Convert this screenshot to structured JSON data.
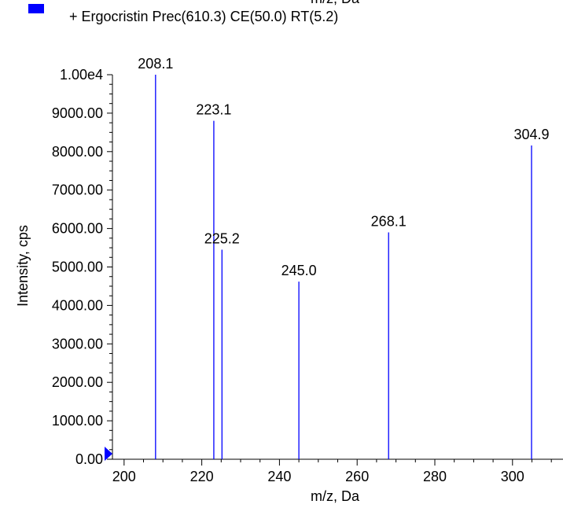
{
  "header": {
    "cut_off_axis_label": "m/z, Da"
  },
  "legend": {
    "label": "+ Ergocristin Prec(610.3) CE(50.0) RT(5.2)",
    "swatch_color": "#0000ff"
  },
  "chart_data": {
    "type": "bar",
    "xlabel": "m/z, Da",
    "ylabel": "Intensity, cps",
    "xlim": [
      197,
      313
    ],
    "ylim": [
      0,
      10000
    ],
    "x_ticks": [
      200,
      220,
      240,
      260,
      280,
      300
    ],
    "x_tick_labels": [
      "200",
      "220",
      "240",
      "260",
      "280",
      "300"
    ],
    "y_ticks": [
      0,
      1000,
      2000,
      3000,
      4000,
      5000,
      6000,
      7000,
      8000,
      9000,
      10000
    ],
    "y_tick_labels": [
      "0.00",
      "1000.00",
      "2000.00",
      "3000.00",
      "4000.00",
      "5000.00",
      "6000.00",
      "7000.00",
      "8000.00",
      "9000.00",
      "1.00e4"
    ],
    "grid": false,
    "series_color": "#0000ff",
    "points": [
      {
        "x": 208.1,
        "y": 10000,
        "label": "208.1"
      },
      {
        "x": 223.1,
        "y": 8800,
        "label": "223.1"
      },
      {
        "x": 225.2,
        "y": 5450,
        "label": "225.2"
      },
      {
        "x": 245.0,
        "y": 4620,
        "label": "245.0"
      },
      {
        "x": 268.1,
        "y": 5900,
        "label": "268.1"
      },
      {
        "x": 304.9,
        "y": 8160,
        "label": "304.9"
      }
    ]
  }
}
